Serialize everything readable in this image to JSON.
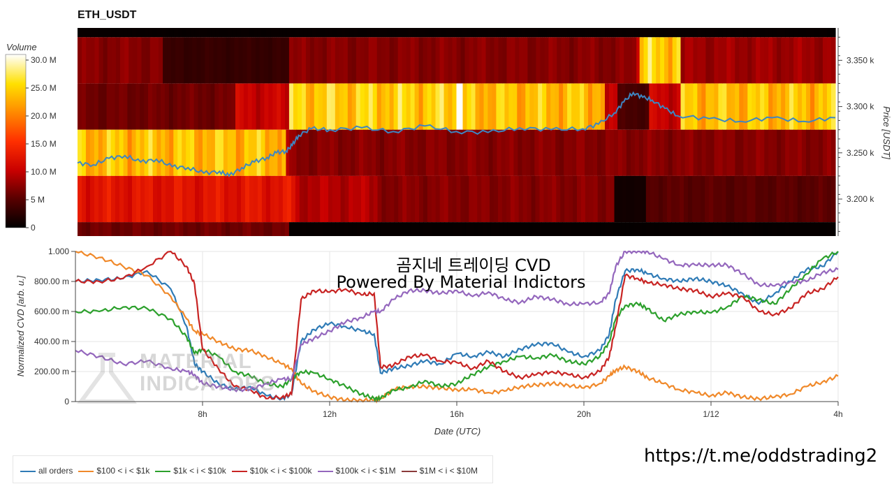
{
  "title": "ETH_USDT",
  "colorbar": {
    "label": "Volume",
    "ticks": [
      {
        "value": 30,
        "label": "30.0 M"
      },
      {
        "value": 25,
        "label": "25.0 M"
      },
      {
        "value": 20,
        "label": "20.0 M"
      },
      {
        "value": 15,
        "label": "15.0 M"
      },
      {
        "value": 10,
        "label": "10.0 M"
      },
      {
        "value": 5,
        "label": "5 M"
      },
      {
        "value": 0,
        "label": "0"
      }
    ]
  },
  "overlay_text": {
    "line1": "곰지네 트레이딩 CVD",
    "line2": "Powered By Material Indictors"
  },
  "watermark": {
    "line1": "MATERIAL",
    "line2": "INDICATORS"
  },
  "footer_url": "https://t.me/oddstrading2",
  "chart_data": [
    {
      "type": "heatmap",
      "title": "ETH_USDT",
      "ylabel": "Price [USDT]",
      "xlim": [
        4.0,
        28.0
      ],
      "ylim": [
        3160,
        3385
      ],
      "price_ticks": [
        {
          "value": 3350,
          "label": "3.350 k"
        },
        {
          "value": 3300,
          "label": "3.300 k"
        },
        {
          "value": 3250,
          "label": "3.250 k"
        },
        {
          "value": 3200,
          "label": "3.200 k"
        }
      ],
      "bands": [
        {
          "price_range": [
            3325,
            3375
          ],
          "segments": [
            [
              4.0,
              6.7,
              7
            ],
            [
              6.7,
              10.7,
              3
            ],
            [
              10.7,
              21.7,
              7
            ],
            [
              21.7,
              21.8,
              10
            ],
            [
              21.8,
              23.1,
              24
            ],
            [
              23.1,
              28.0,
              8
            ]
          ]
        },
        {
          "price_range": [
            3275,
            3325
          ],
          "segments": [
            [
              4.0,
              9.0,
              6
            ],
            [
              9.0,
              10.7,
              10
            ],
            [
              10.7,
              16.0,
              24
            ],
            [
              16.0,
              16.2,
              30
            ],
            [
              16.2,
              20.7,
              23
            ],
            [
              20.7,
              21.1,
              9
            ],
            [
              21.1,
              22.1,
              4
            ],
            [
              22.1,
              23.1,
              10
            ],
            [
              23.1,
              28.0,
              23
            ]
          ]
        },
        {
          "price_range": [
            3225,
            3275
          ],
          "segments": [
            [
              4.0,
              10.6,
              23
            ],
            [
              10.6,
              10.8,
              8
            ],
            [
              10.8,
              28.0,
              7
            ]
          ]
        },
        {
          "price_range": [
            3175,
            3225
          ],
          "segments": [
            [
              4.0,
              10.9,
              12
            ],
            [
              10.9,
              13.5,
              9
            ],
            [
              13.5,
              21.0,
              7
            ],
            [
              21.0,
              22.0,
              1
            ],
            [
              22.0,
              28.0,
              5
            ]
          ]
        },
        {
          "price_range": [
            3160,
            3175
          ],
          "segments": [
            [
              4.0,
              10.7,
              6
            ],
            [
              10.7,
              28.0,
              0.3
            ]
          ]
        },
        {
          "price_range": [
            3375,
            3385
          ],
          "segments": [
            [
              4.0,
              28.0,
              0.4
            ]
          ]
        }
      ],
      "price_line": {
        "color": "#3e86c2",
        "x": [
          4.0,
          4.5,
          5.0,
          5.5,
          6.0,
          6.5,
          7.0,
          7.5,
          8.0,
          8.5,
          8.8,
          9.2,
          9.6,
          10.0,
          10.3,
          10.6,
          10.8,
          11.0,
          11.4,
          12.0,
          13.0,
          14.0,
          15.0,
          16.0,
          17.0,
          18.0,
          19.0,
          20.0,
          20.5,
          21.0,
          21.3,
          21.6,
          21.9,
          22.2,
          22.6,
          23.0,
          24.0,
          25.0,
          26.0,
          27.0,
          28.0
        ],
        "y": [
          3239,
          3237,
          3244,
          3247,
          3240,
          3243,
          3235,
          3234,
          3228,
          3230,
          3225,
          3234,
          3240,
          3245,
          3250,
          3252,
          3258,
          3269,
          3276,
          3275,
          3277,
          3273,
          3279,
          3273,
          3272,
          3277,
          3275,
          3276,
          3281,
          3293,
          3305,
          3315,
          3310,
          3307,
          3298,
          3290,
          3287,
          3284,
          3288,
          3284,
          3288
        ]
      }
    },
    {
      "type": "line",
      "xlabel": "Date (UTC)",
      "ylabel": "Normalized CVD [arb. u.]",
      "xlim": [
        4.0,
        28.0
      ],
      "ylim": [
        0,
        1.0
      ],
      "x_ticks": [
        {
          "value": 8,
          "label": "8h"
        },
        {
          "value": 12,
          "label": "12h"
        },
        {
          "value": 16,
          "label": "16h"
        },
        {
          "value": 20,
          "label": "20h"
        },
        {
          "value": 24,
          "label": "1/12"
        },
        {
          "value": 28,
          "label": "4h"
        }
      ],
      "y_ticks": [
        {
          "value": 0,
          "label": "0"
        },
        {
          "value": 0.2,
          "label": "200.00 m"
        },
        {
          "value": 0.4,
          "label": "400.00 m"
        },
        {
          "value": 0.6,
          "label": "600.00 m"
        },
        {
          "value": 0.8,
          "label": "800.00 m"
        },
        {
          "value": 1.0,
          "label": "1.000"
        }
      ],
      "x": [
        4.0,
        4.75,
        5.5,
        6.25,
        7.0,
        7.5,
        7.75,
        8.0,
        8.5,
        9.0,
        9.5,
        10.0,
        10.5,
        10.8,
        11.1,
        11.5,
        12.0,
        12.5,
        13.0,
        13.4,
        13.6,
        14.0,
        14.5,
        15.0,
        15.5,
        16.0,
        16.5,
        17.0,
        17.5,
        18.0,
        18.5,
        19.0,
        19.5,
        20.0,
        20.5,
        20.8,
        21.0,
        21.3,
        21.7,
        22.0,
        22.5,
        23.0,
        23.5,
        24.0,
        24.5,
        25.0,
        25.5,
        26.0,
        26.5,
        27.0,
        27.5,
        28.0
      ],
      "series": [
        {
          "name": "all orders",
          "color": "#2f7bb6",
          "values": [
            0.8,
            0.81,
            0.82,
            0.87,
            0.75,
            0.5,
            0.25,
            0.2,
            0.12,
            0.08,
            0.1,
            0.04,
            0.02,
            0.05,
            0.4,
            0.48,
            0.52,
            0.5,
            0.47,
            0.45,
            0.19,
            0.22,
            0.24,
            0.27,
            0.25,
            0.32,
            0.3,
            0.33,
            0.3,
            0.35,
            0.38,
            0.39,
            0.33,
            0.3,
            0.34,
            0.45,
            0.68,
            0.87,
            0.88,
            0.85,
            0.82,
            0.8,
            0.82,
            0.8,
            0.77,
            0.72,
            0.65,
            0.72,
            0.8,
            0.88,
            0.9,
            1.0
          ]
        },
        {
          "name": "$100 < i < $1k",
          "color": "#f0892a",
          "values": [
            1.0,
            0.96,
            0.9,
            0.84,
            0.7,
            0.55,
            0.47,
            0.45,
            0.4,
            0.35,
            0.34,
            0.3,
            0.25,
            0.22,
            0.12,
            0.07,
            0.03,
            0.01,
            0.01,
            0.01,
            0.02,
            0.08,
            0.1,
            0.1,
            0.09,
            0.08,
            0.08,
            0.06,
            0.07,
            0.1,
            0.11,
            0.12,
            0.11,
            0.09,
            0.12,
            0.17,
            0.21,
            0.23,
            0.2,
            0.16,
            0.12,
            0.08,
            0.06,
            0.04,
            0.06,
            0.03,
            0.02,
            0.03,
            0.05,
            0.1,
            0.13,
            0.17
          ]
        },
        {
          "name": "$1k < i < $10k",
          "color": "#2ca02c",
          "values": [
            0.6,
            0.6,
            0.63,
            0.62,
            0.55,
            0.43,
            0.32,
            0.35,
            0.3,
            0.2,
            0.17,
            0.12,
            0.1,
            0.15,
            0.2,
            0.19,
            0.15,
            0.1,
            0.05,
            0.02,
            0.02,
            0.08,
            0.09,
            0.14,
            0.1,
            0.12,
            0.18,
            0.23,
            0.27,
            0.3,
            0.29,
            0.31,
            0.27,
            0.25,
            0.3,
            0.4,
            0.55,
            0.64,
            0.65,
            0.62,
            0.54,
            0.58,
            0.6,
            0.59,
            0.63,
            0.7,
            0.68,
            0.65,
            0.75,
            0.85,
            0.95,
            1.0
          ]
        },
        {
          "name": "$10k < i < $100k",
          "color": "#c82423",
          "values": [
            0.8,
            0.8,
            0.82,
            0.9,
            1.0,
            0.9,
            0.78,
            0.35,
            0.22,
            0.1,
            0.08,
            0.02,
            0.03,
            0.05,
            0.68,
            0.74,
            0.73,
            0.75,
            0.71,
            0.72,
            0.23,
            0.24,
            0.3,
            0.31,
            0.27,
            0.26,
            0.22,
            0.27,
            0.2,
            0.16,
            0.18,
            0.2,
            0.18,
            0.16,
            0.2,
            0.3,
            0.5,
            0.84,
            0.82,
            0.79,
            0.78,
            0.75,
            0.74,
            0.7,
            0.72,
            0.7,
            0.6,
            0.58,
            0.62,
            0.72,
            0.75,
            0.83
          ]
        },
        {
          "name": "$100k < i < $1M",
          "color": "#9467bd",
          "values": [
            0.34,
            0.3,
            0.25,
            0.27,
            0.22,
            0.2,
            0.18,
            0.12,
            0.1,
            0.08,
            0.08,
            0.12,
            0.15,
            0.15,
            0.38,
            0.42,
            0.47,
            0.53,
            0.56,
            0.6,
            0.6,
            0.68,
            0.74,
            0.74,
            0.72,
            0.74,
            0.7,
            0.73,
            0.68,
            0.66,
            0.7,
            0.68,
            0.65,
            0.65,
            0.66,
            0.72,
            0.9,
            1.0,
            1.0,
            1.0,
            0.95,
            0.91,
            0.91,
            0.91,
            0.91,
            0.85,
            0.78,
            0.77,
            0.8,
            0.8,
            0.86,
            0.88
          ]
        }
      ],
      "legend_only_series": [
        {
          "name": "$1M < i < $10M",
          "color": "#8b3a3a"
        }
      ],
      "grid": true,
      "legend_position": "bottom"
    }
  ]
}
